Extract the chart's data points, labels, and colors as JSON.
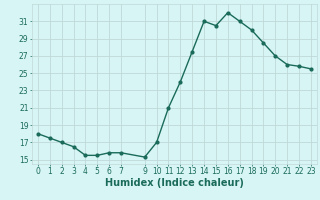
{
  "x": [
    0,
    1,
    2,
    3,
    4,
    5,
    6,
    7,
    9,
    10,
    11,
    12,
    13,
    14,
    15,
    16,
    17,
    18,
    19,
    20,
    21,
    22,
    23
  ],
  "y": [
    18.0,
    17.5,
    17.0,
    16.5,
    15.5,
    15.5,
    15.8,
    15.8,
    15.3,
    17.0,
    21.0,
    24.0,
    27.5,
    31.0,
    30.5,
    32.0,
    31.0,
    30.0,
    28.5,
    27.0,
    26.0,
    25.8,
    25.5
  ],
  "line_color": "#1a6b5a",
  "marker": "o",
  "marker_size": 2.0,
  "background_color": "#d8f5f5",
  "grid_color": "#c0d8d8",
  "xlabel": "Humidex (Indice chaleur)",
  "xlim": [
    -0.5,
    23.5
  ],
  "ylim": [
    14.5,
    33.0
  ],
  "yticks": [
    15,
    17,
    19,
    21,
    23,
    25,
    27,
    29,
    31
  ],
  "xticks": [
    0,
    1,
    2,
    3,
    4,
    5,
    6,
    7,
    9,
    10,
    11,
    12,
    13,
    14,
    15,
    16,
    17,
    18,
    19,
    20,
    21,
    22,
    23
  ],
  "tick_label_fontsize": 5.5,
  "xlabel_fontsize": 7.0,
  "line_width": 1.0
}
